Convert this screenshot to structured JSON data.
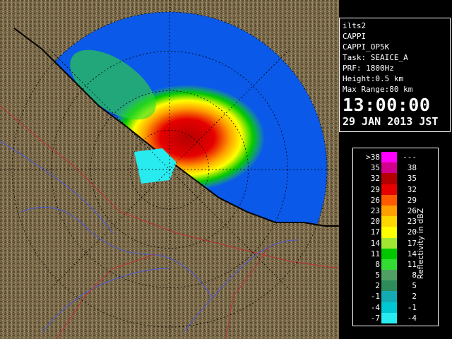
{
  "map": {
    "center_lat": 44.6,
    "center_lon": 142.56,
    "range_km": 80,
    "ring_count": 4,
    "colors": {
      "land": "#7a6a4a",
      "land_shadow": "#4a3a22",
      "range_disk": "#0a59e8",
      "coastline": "#000000",
      "rivers": "#4a5ae0",
      "boundaries": "#c03030",
      "grid": "#000000"
    }
  },
  "info": {
    "radar": "ilts2",
    "product": "CAPPI",
    "product_id": "CAPPI_OP5K",
    "task": "Task: SEAICE_A",
    "prf": "PRF: 1800Hz",
    "height": "Height:0.5 km",
    "max_range": "Max Range:80 km",
    "time": "13:00:00",
    "date": "29 JAN 2013 JST"
  },
  "legend": {
    "unit": "Reflectivity in dBZ",
    "rows": [
      {
        "lo": ">38",
        "hi": "---",
        "color": "#ff00ff"
      },
      {
        "lo": "35",
        "hi": "38",
        "color": "#d2008c"
      },
      {
        "lo": "32",
        "hi": "35",
        "color": "#b40000"
      },
      {
        "lo": "29",
        "hi": "32",
        "color": "#e60000"
      },
      {
        "lo": "26",
        "hi": "29",
        "color": "#ff5a00"
      },
      {
        "lo": "23",
        "hi": "26",
        "color": "#ffa000"
      },
      {
        "lo": "20",
        "hi": "23",
        "color": "#ffd700"
      },
      {
        "lo": "17",
        "hi": "20",
        "color": "#ffff00"
      },
      {
        "lo": "14",
        "hi": "17",
        "color": "#a0e632"
      },
      {
        "lo": "11",
        "hi": "14",
        "color": "#00c800"
      },
      {
        "lo": "8",
        "hi": "11",
        "color": "#32dc32"
      },
      {
        "lo": "5",
        "hi": "8",
        "color": "#50a064"
      },
      {
        "lo": "2",
        "hi": "5",
        "color": "#2d8c5a"
      },
      {
        "lo": "-1",
        "hi": "2",
        "color": "#14aab4"
      },
      {
        "lo": "-4",
        "hi": "-1",
        "color": "#00c8d2"
      },
      {
        "lo": "-7",
        "hi": "-4",
        "color": "#28ebf0"
      }
    ]
  }
}
